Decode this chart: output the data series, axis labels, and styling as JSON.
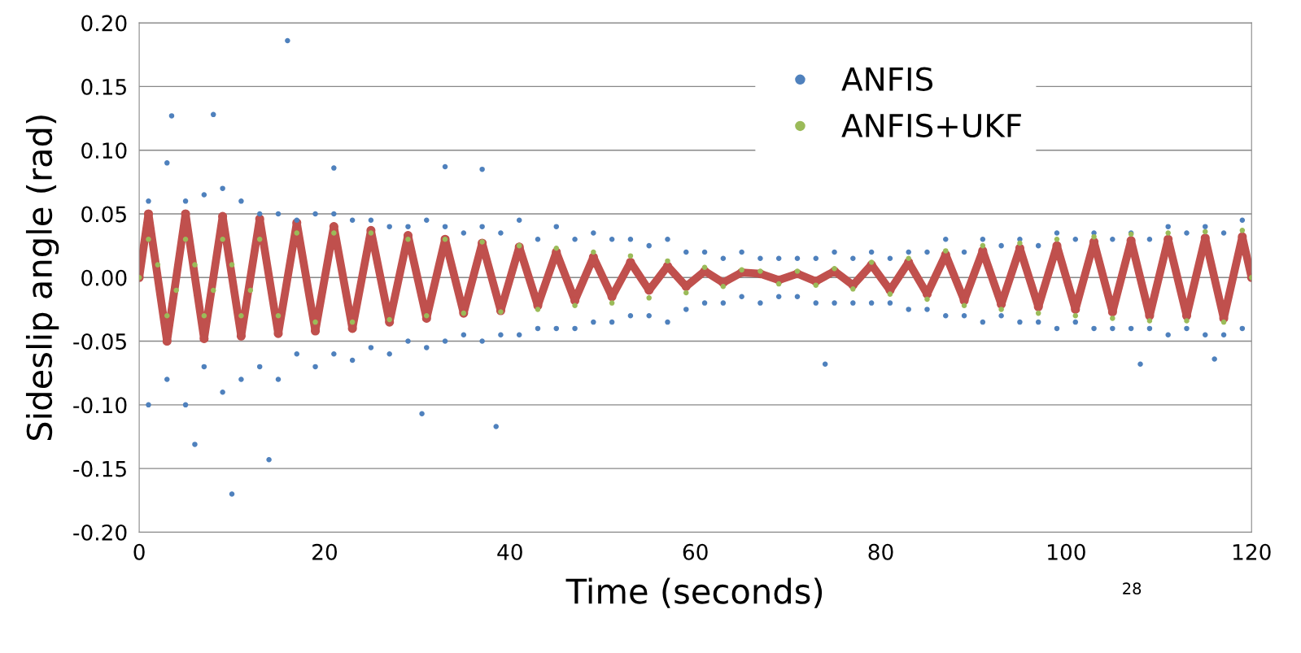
{
  "chart_data": {
    "type": "scatter",
    "xlabel": "Time (seconds)",
    "ylabel": "Sideslip angle (rad)",
    "xlim": [
      0,
      120
    ],
    "xticks": [
      0,
      20,
      40,
      60,
      80,
      100,
      120
    ],
    "ylim": [
      -0.2,
      0.2
    ],
    "yticks": [
      {
        "value": -0.2,
        "label": "-0.20"
      },
      {
        "value": -0.15,
        "label": "-0.15"
      },
      {
        "value": -0.1,
        "label": "-0.10"
      },
      {
        "value": -0.05,
        "label": "-0.05"
      },
      {
        "value": 0,
        "label": "0.00"
      },
      {
        "value": 0.05,
        "label": "0.05"
      },
      {
        "value": 0.1,
        "label": "0.10"
      },
      {
        "value": 0.15,
        "label": "0.15"
      },
      {
        "value": 0.2,
        "label": "0.20"
      }
    ],
    "grid": "y",
    "legend": "top right",
    "marker": "circle",
    "annotations": [
      "28"
    ],
    "series": [
      {
        "name": "ANFIS",
        "color": "#4f81bd",
        "x": [
          1,
          3,
          5,
          7,
          9,
          11,
          13,
          15,
          17,
          19,
          21,
          23,
          25,
          27,
          29,
          31,
          33,
          35,
          37,
          39,
          41,
          43,
          45,
          47,
          49,
          51,
          53,
          55,
          57,
          59,
          61,
          63,
          65,
          67,
          69,
          71,
          73,
          75,
          77,
          79,
          81,
          83,
          85,
          87,
          89,
          91,
          93,
          95,
          97,
          99,
          101,
          103,
          105,
          107,
          109,
          111,
          113,
          115,
          117,
          119,
          1,
          3,
          5,
          7,
          9,
          11,
          13,
          15,
          17,
          19,
          21,
          23,
          25,
          27,
          29,
          31,
          33,
          35,
          37,
          39,
          41,
          43,
          45,
          47,
          49,
          51,
          53,
          55,
          57,
          59,
          61,
          63,
          65,
          67,
          69,
          71,
          73,
          75,
          77,
          79,
          81,
          83,
          85,
          87,
          89,
          91,
          93,
          95,
          97,
          99,
          101,
          103,
          105,
          107,
          109,
          111,
          113,
          115,
          117,
          119,
          16,
          3.5,
          8,
          10,
          14,
          6,
          38.5,
          30.5,
          74,
          108,
          116,
          33,
          37,
          21
        ],
        "values": [
          0.06,
          0.09,
          0.06,
          0.065,
          0.07,
          0.06,
          0.05,
          0.05,
          0.045,
          0.05,
          0.05,
          0.045,
          0.045,
          0.04,
          0.04,
          0.045,
          0.04,
          0.035,
          0.04,
          0.035,
          0.045,
          0.03,
          0.04,
          0.03,
          0.035,
          0.03,
          0.03,
          0.025,
          0.03,
          0.02,
          0.02,
          0.015,
          0.02,
          0.015,
          0.015,
          0.015,
          0.015,
          0.02,
          0.015,
          0.02,
          0.015,
          0.02,
          0.02,
          0.03,
          0.02,
          0.03,
          0.025,
          0.03,
          0.025,
          0.035,
          0.03,
          0.035,
          0.03,
          0.035,
          0.03,
          0.04,
          0.035,
          0.04,
          0.035,
          0.045,
          -0.1,
          -0.08,
          -0.1,
          -0.07,
          -0.09,
          -0.08,
          -0.07,
          -0.08,
          -0.06,
          -0.07,
          -0.06,
          -0.065,
          -0.055,
          -0.06,
          -0.05,
          -0.055,
          -0.05,
          -0.045,
          -0.05,
          -0.045,
          -0.045,
          -0.04,
          -0.04,
          -0.04,
          -0.035,
          -0.035,
          -0.03,
          -0.03,
          -0.035,
          -0.025,
          -0.02,
          -0.02,
          -0.015,
          -0.02,
          -0.015,
          -0.015,
          -0.02,
          -0.02,
          -0.02,
          -0.02,
          -0.02,
          -0.025,
          -0.025,
          -0.03,
          -0.03,
          -0.035,
          -0.03,
          -0.035,
          -0.035,
          -0.04,
          -0.035,
          -0.04,
          -0.04,
          -0.04,
          -0.04,
          -0.045,
          -0.04,
          -0.045,
          -0.045,
          -0.04,
          0.186,
          0.127,
          0.128,
          -0.17,
          -0.143,
          -0.131,
          -0.117,
          -0.107,
          -0.068,
          -0.068,
          -0.064,
          0.087,
          0.085,
          0.086
        ]
      },
      {
        "name": "ANFIS+UKF",
        "color": "#9bbb59",
        "x": [
          0,
          1,
          2,
          3,
          4,
          5,
          6,
          7,
          8,
          9,
          10,
          11,
          12,
          13,
          15,
          17,
          19,
          21,
          23,
          25,
          27,
          29,
          31,
          33,
          35,
          37,
          39,
          41,
          43,
          45,
          47,
          49,
          51,
          53,
          55,
          57,
          59,
          61,
          63,
          65,
          67,
          69,
          71,
          73,
          75,
          77,
          79,
          81,
          83,
          85,
          87,
          89,
          91,
          93,
          95,
          97,
          99,
          101,
          103,
          105,
          107,
          109,
          111,
          113,
          115,
          117,
          119,
          120
        ],
        "values": [
          0,
          0.03,
          0.01,
          -0.03,
          -0.01,
          0.03,
          0.01,
          -0.03,
          -0.01,
          0.03,
          0.01,
          -0.03,
          -0.01,
          0.03,
          -0.03,
          0.035,
          -0.035,
          0.035,
          -0.035,
          0.035,
          -0.033,
          0.03,
          -0.03,
          0.03,
          -0.028,
          0.028,
          -0.027,
          0.025,
          -0.025,
          0.023,
          -0.022,
          0.02,
          -0.02,
          0.017,
          -0.016,
          0.013,
          -0.012,
          0.008,
          -0.007,
          0.006,
          0.005,
          -0.005,
          0.005,
          -0.006,
          0.007,
          -0.009,
          0.012,
          -0.013,
          0.015,
          -0.017,
          0.021,
          -0.022,
          0.025,
          -0.025,
          0.027,
          -0.028,
          0.03,
          -0.03,
          0.032,
          -0.032,
          0.034,
          -0.034,
          0.035,
          -0.034,
          0.036,
          -0.035,
          0.037,
          0
        ]
      },
      {
        "type": "line",
        "color": "#c0504d",
        "x": [
          0,
          1,
          3,
          5,
          7,
          9,
          11,
          13,
          15,
          17,
          19,
          21,
          23,
          25,
          27,
          29,
          31,
          33,
          35,
          37,
          39,
          41,
          43,
          45,
          47,
          49,
          51,
          53,
          55,
          57,
          59,
          61,
          63,
          65,
          67,
          69,
          71,
          73,
          75,
          77,
          79,
          81,
          83,
          85,
          87,
          89,
          91,
          93,
          95,
          97,
          99,
          101,
          103,
          105,
          107,
          109,
          111,
          113,
          115,
          117,
          119,
          120
        ],
        "values": [
          0,
          0.05,
          -0.05,
          0.05,
          -0.048,
          0.048,
          -0.046,
          0.046,
          -0.044,
          0.043,
          -0.042,
          0.04,
          -0.04,
          0.037,
          -0.035,
          0.033,
          -0.032,
          0.03,
          -0.028,
          0.027,
          -0.026,
          0.024,
          -0.022,
          0.02,
          -0.018,
          0.016,
          -0.015,
          0.012,
          -0.01,
          0.009,
          -0.007,
          0.005,
          -0.004,
          0.004,
          0.003,
          -0.002,
          0.003,
          -0.003,
          0.005,
          -0.006,
          0.01,
          -0.01,
          0.012,
          -0.013,
          0.018,
          -0.018,
          0.021,
          -0.021,
          0.023,
          -0.023,
          0.025,
          -0.025,
          0.028,
          -0.027,
          0.029,
          -0.03,
          0.03,
          -0.03,
          0.031,
          -0.032,
          0.032,
          0
        ]
      }
    ]
  }
}
